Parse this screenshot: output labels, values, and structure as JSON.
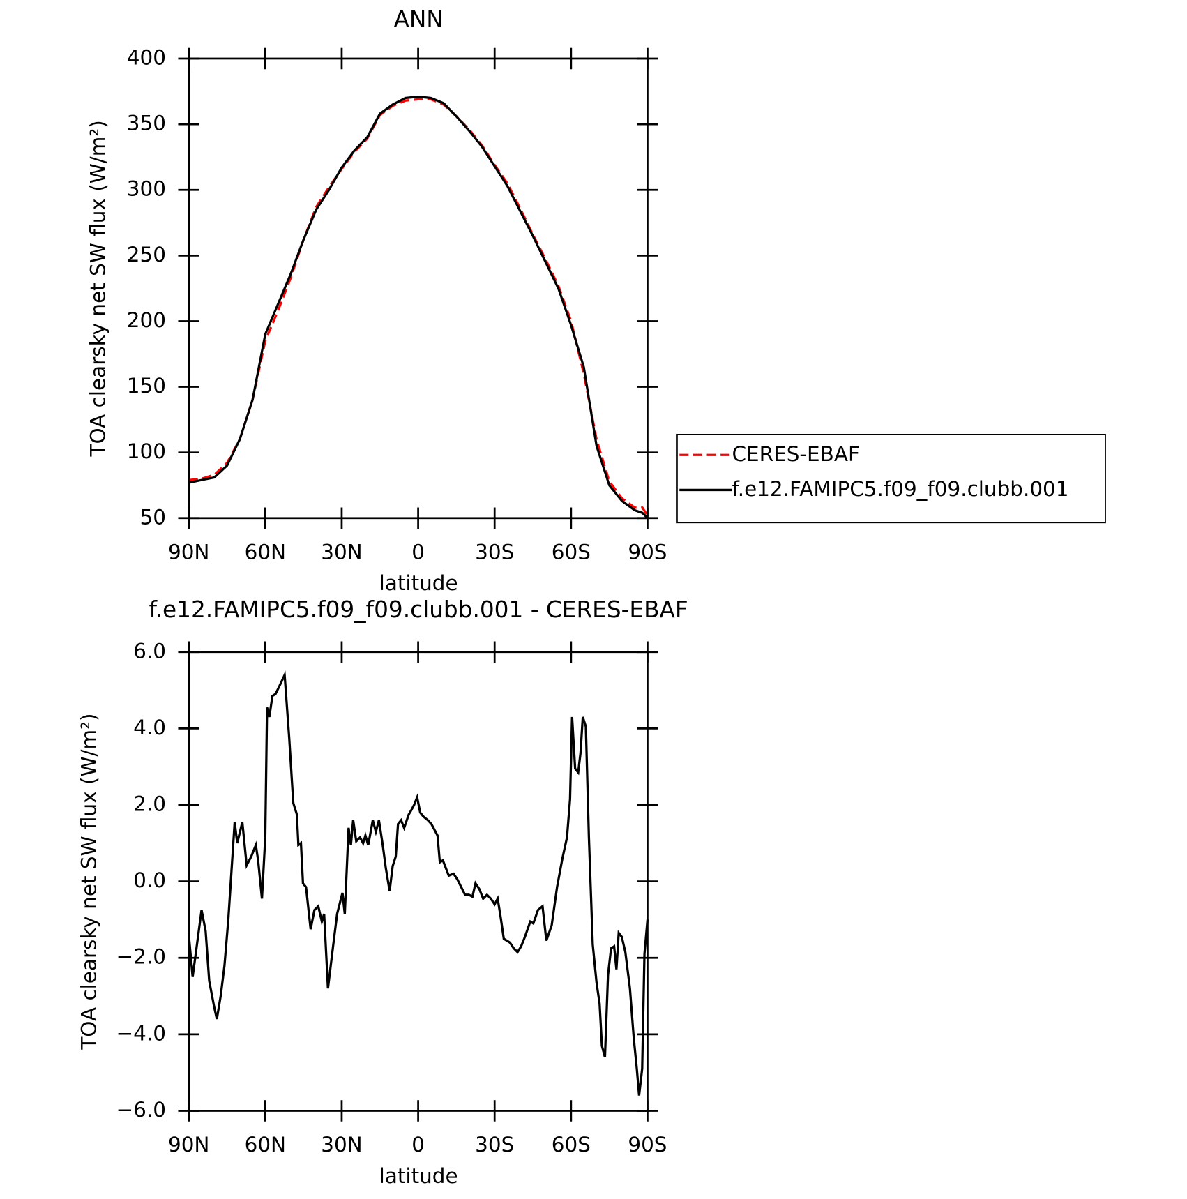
{
  "chart_data": [
    {
      "type": "line",
      "title": "ANN",
      "xlabel": "latitude",
      "ylabel": "TOA clearsky net SW flux (W/m²)",
      "x": [
        90,
        85,
        80,
        75,
        70,
        65,
        60,
        55,
        50,
        45,
        40,
        35,
        30,
        25,
        20,
        15,
        10,
        5,
        0,
        -5,
        -10,
        -15,
        -20,
        -25,
        -30,
        -35,
        -40,
        -45,
        -50,
        -55,
        -60,
        -65,
        -70,
        -75,
        -80,
        -85,
        -88,
        -90
      ],
      "series": [
        {
          "name": "CERES-EBAF",
          "color": "#ff0000",
          "dash": true,
          "values": [
            79,
            80,
            83,
            92,
            110,
            140,
            185,
            208,
            233,
            262,
            287,
            302,
            316,
            329,
            339,
            357,
            364,
            368,
            369,
            369,
            365,
            356,
            346,
            334,
            319,
            305,
            286,
            266,
            247,
            227,
            200,
            160,
            110,
            78,
            65,
            58,
            58,
            52
          ]
        },
        {
          "name": "f.e12.FAMIPC5.f09_f09.clubb.001",
          "color": "#000000",
          "dash": false,
          "values": [
            77,
            79,
            81,
            90,
            110,
            140,
            190,
            213,
            236,
            262,
            285,
            300,
            317,
            330,
            340,
            358,
            365,
            370,
            371,
            370,
            366,
            356,
            345,
            333,
            318,
            303,
            284,
            265,
            245,
            225,
            197,
            165,
            105,
            75,
            63,
            56,
            54,
            50
          ]
        }
      ],
      "xlim": [
        90,
        -90
      ],
      "xticks": [
        {
          "value": 90,
          "label": "90N"
        },
        {
          "value": 60,
          "label": "60N"
        },
        {
          "value": 30,
          "label": "30N"
        },
        0,
        {
          "value": -30,
          "label": "30S"
        },
        {
          "value": -60,
          "label": "60S"
        },
        {
          "value": -90,
          "label": "90S"
        }
      ],
      "ylim": [
        50,
        400
      ],
      "yticks": [
        50,
        100,
        150,
        200,
        250,
        300,
        350,
        400
      ],
      "legend": "right"
    },
    {
      "type": "line",
      "title": "f.e12.FAMIPC5.f09_f09.clubb.001 - CERES-EBAF",
      "xlabel": "latitude",
      "ylabel": "TOA clearsky net SW flux (W/m²)",
      "x": [
        90,
        88.5,
        85,
        83.4,
        82,
        80,
        79,
        77.5,
        76,
        74.5,
        72,
        71,
        69,
        67.3,
        65.5,
        63.7,
        62.8,
        61.3,
        60,
        59.3,
        58.4,
        57.2,
        56,
        54.5,
        52.4,
        50.6,
        49,
        47.6,
        47,
        46,
        45.2,
        44,
        42.2,
        40.7,
        39.2,
        37.8,
        36.9,
        35.4,
        33.3,
        31.8,
        29.7,
        28.8,
        27.3,
        26.4,
        25.5,
        24.3,
        22.8,
        21.6,
        20.7,
        19.6,
        17.8,
        16.6,
        15.4,
        13.9,
        12.7,
        11.2,
        10,
        8.8,
        7.9,
        6.7,
        5.5,
        3.7,
        2.8,
        1.6,
        0.4,
        -0.8,
        -2,
        -3.8,
        -5.2,
        -7.6,
        -8.5,
        -9.7,
        -12,
        -13.9,
        -15.4,
        -16.9,
        -18.4,
        -19.9,
        -21.3,
        -22.5,
        -24,
        -25.5,
        -27,
        -28.5,
        -30,
        -31.2,
        -32.4,
        -33.6,
        -36,
        -37.5,
        -39,
        -40.4,
        -41.9,
        -44,
        -45.2,
        -47,
        -48.8,
        -50.3,
        -52.4,
        -54.5,
        -56.6,
        -58.4,
        -59.6,
        -60.4,
        -61.6,
        -62.8,
        -63.7,
        -64.6,
        -65.8,
        -67,
        -68.5,
        -70,
        -71.2,
        -72.1,
        -73.3,
        -74.5,
        -75.7,
        -76.9,
        -77.8,
        -78.7,
        -79.9,
        -81.3,
        -83.1,
        -84.6,
        -85.8,
        -86.7,
        -87.9,
        -88.8,
        -90
      ],
      "values": [
        -1.4,
        -2.5,
        -0.75,
        -1.3,
        -2.6,
        -3.3,
        -3.6,
        -3.0,
        -2.2,
        -1.0,
        1.55,
        1.0,
        1.55,
        0.42,
        0.65,
        0.95,
        0.55,
        -0.45,
        1.15,
        4.55,
        4.3,
        4.85,
        4.9,
        5.1,
        5.4,
        3.75,
        2.05,
        1.75,
        0.95,
        1.0,
        -0.05,
        -0.15,
        -1.25,
        -0.75,
        -0.65,
        -1.05,
        -0.85,
        -2.8,
        -1.65,
        -0.85,
        -0.3,
        -0.85,
        1.4,
        0.95,
        1.6,
        1.05,
        1.15,
        1.0,
        1.2,
        0.95,
        1.6,
        1.3,
        1.6,
        0.95,
        0.35,
        -0.25,
        0.4,
        0.65,
        1.5,
        1.6,
        1.4,
        1.75,
        1.85,
        2.0,
        2.2,
        1.8,
        1.7,
        1.6,
        1.5,
        1.2,
        0.5,
        0.55,
        0.15,
        0.2,
        0.05,
        -0.15,
        -0.35,
        -0.35,
        -0.4,
        -0.05,
        -0.2,
        -0.45,
        -0.35,
        -0.45,
        -0.6,
        -0.45,
        -0.95,
        -1.5,
        -1.6,
        -1.75,
        -1.85,
        -1.7,
        -1.45,
        -1.05,
        -1.1,
        -0.75,
        -0.65,
        -1.55,
        -1.15,
        -0.15,
        0.6,
        1.15,
        2.15,
        4.3,
        2.95,
        2.85,
        3.35,
        4.3,
        4.05,
        1.15,
        -1.65,
        -2.65,
        -3.2,
        -4.3,
        -4.6,
        -2.45,
        -1.75,
        -1.7,
        -2.3,
        -1.35,
        -1.45,
        -1.85,
        -2.8,
        -4.1,
        -4.9,
        -5.6,
        -4.9,
        -1.9,
        -1.0
      ],
      "color": "#000000",
      "xlim": [
        90,
        -90
      ],
      "xticks": [
        {
          "value": 90,
          "label": "90N"
        },
        {
          "value": 60,
          "label": "60N"
        },
        {
          "value": 30,
          "label": "30N"
        },
        0,
        {
          "value": -30,
          "label": "30S"
        },
        {
          "value": -60,
          "label": "60S"
        },
        {
          "value": -90,
          "label": "90S"
        }
      ],
      "ylim": [
        -6,
        6
      ],
      "yticks": [
        {
          "value": -6,
          "label": "−6.0"
        },
        {
          "value": -4,
          "label": "−4.0"
        },
        {
          "value": -2,
          "label": "−2.0"
        },
        {
          "value": 0,
          "label": "0.0"
        },
        {
          "value": 2,
          "label": "2.0"
        },
        {
          "value": 4,
          "label": "4.0"
        },
        {
          "value": 6,
          "label": "6.0"
        }
      ]
    }
  ]
}
